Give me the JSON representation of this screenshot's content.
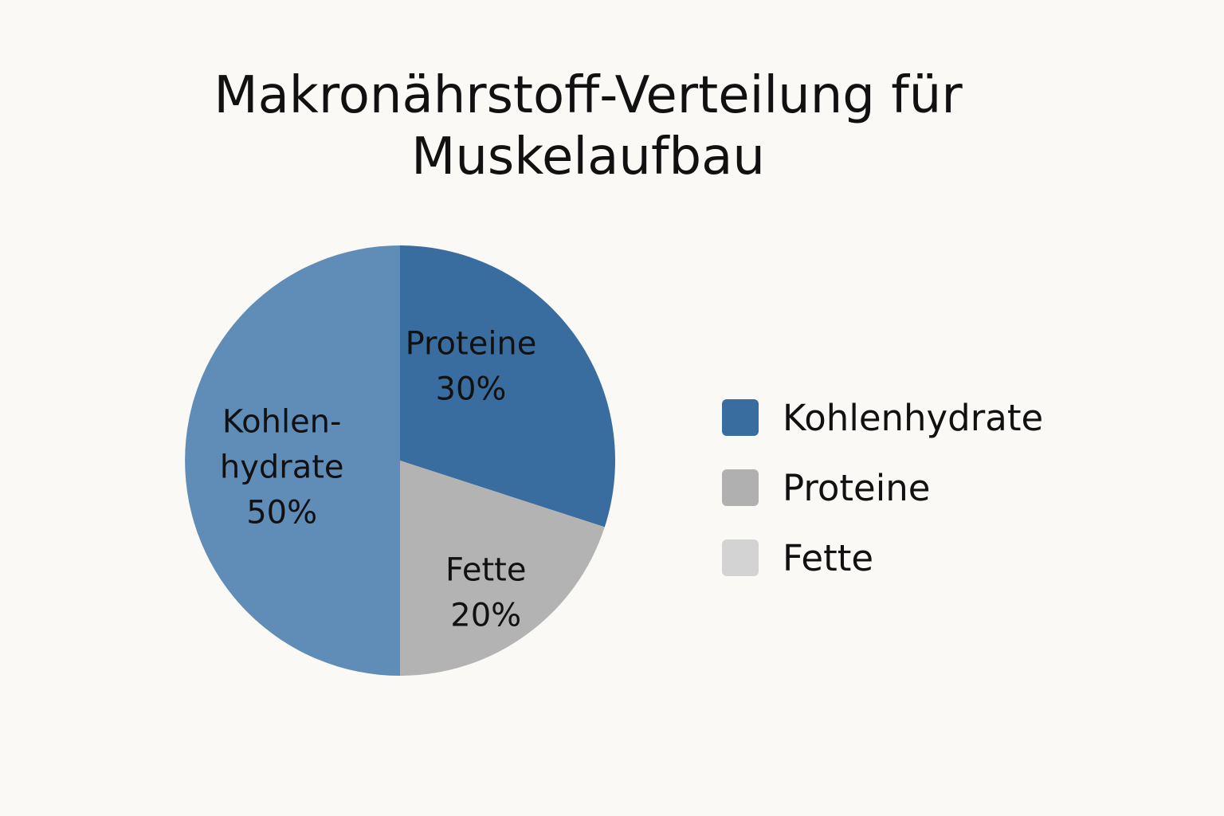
{
  "chart_data": {
    "type": "pie",
    "title_lines": [
      "Makronährstoff-Verteilung für",
      "Muskelaufbau"
    ],
    "slices": [
      {
        "name": "Proteine",
        "value": 30,
        "value_label": "30%",
        "label_lines": [
          "Proteine",
          "30%"
        ],
        "color": "#3a6d9f"
      },
      {
        "name": "Fette",
        "value": 20,
        "value_label": "20%",
        "label_lines": [
          "Fette",
          "20%"
        ],
        "color": "#b3b3b3"
      },
      {
        "name": "Kohlenhydrate",
        "value": 50,
        "value_label": "50%",
        "label_lines": [
          "Kohlen-",
          "hydrate",
          "50%"
        ],
        "color": "#5f8db7"
      }
    ],
    "start_angle": "12 o'clock",
    "direction": "clockwise",
    "legend": {
      "position": "right",
      "items": [
        {
          "label": "Kohlenhydrate",
          "color": "#3a6d9f"
        },
        {
          "label": "Proteine",
          "color": "#b0b0b0"
        },
        {
          "label": "Fette",
          "color": "#d3d3d3"
        }
      ]
    }
  }
}
